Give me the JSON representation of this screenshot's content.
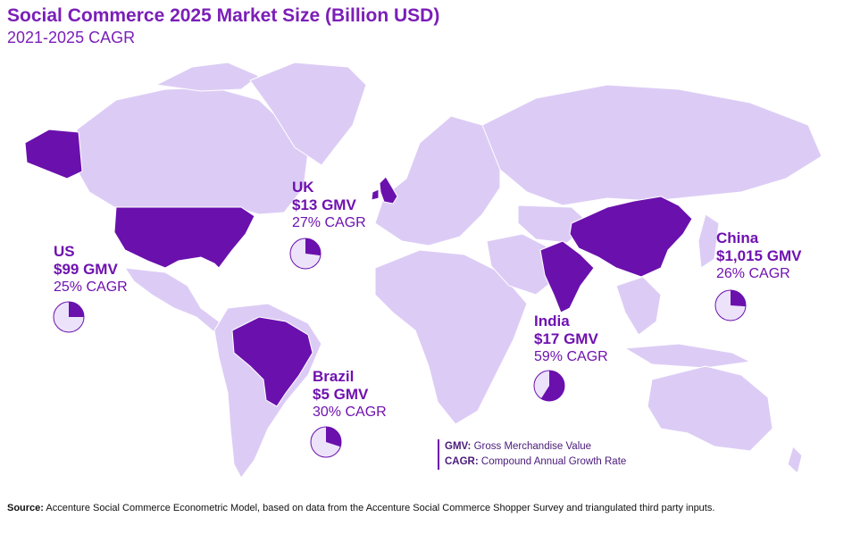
{
  "title": "Social Commerce 2025 Market Size (Billion USD)",
  "subtitle": "2021-2025 CAGR",
  "colors": {
    "highlight": "#6a10ad",
    "land": "#dcccf5",
    "border": "#ffffff",
    "text": "#6f12b0"
  },
  "callouts": [
    {
      "id": "uk",
      "country": "UK",
      "gmv": "$13 GMV",
      "cagr": "27% CAGR",
      "cagr_value": 27
    },
    {
      "id": "us",
      "country": "US",
      "gmv": "$99 GMV",
      "cagr": "25% CAGR",
      "cagr_value": 25
    },
    {
      "id": "china",
      "country": "China",
      "gmv": "$1,015 GMV",
      "cagr": "26% CAGR",
      "cagr_value": 26
    },
    {
      "id": "india",
      "country": "India",
      "gmv": "$17 GMV",
      "cagr": "59% CAGR",
      "cagr_value": 59
    },
    {
      "id": "brazil",
      "country": "Brazil",
      "gmv": "$5 GMV",
      "cagr": "30% CAGR",
      "cagr_value": 30
    }
  ],
  "legend": {
    "gmv_abbr": "GMV:",
    "gmv_text": "Gross Merchandise Value",
    "cagr_abbr": "CAGR:",
    "cagr_text": "Compound Annual Growth Rate"
  },
  "source": {
    "label": "Source:",
    "text": "Accenture Social Commerce Econometric Model, based on data from the Accenture Social Commerce Shopper Survey and triangulated third party inputs."
  }
}
